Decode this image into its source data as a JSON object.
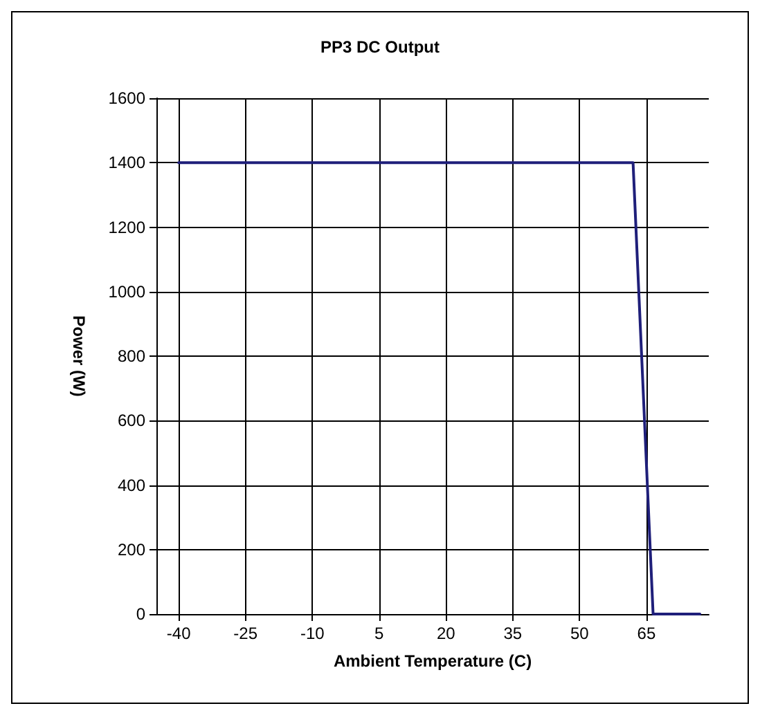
{
  "chart_data": {
    "type": "line",
    "title": "PP3 DC Output",
    "xlabel": "Ambient Temperature (C)",
    "ylabel": "Power (W)",
    "x": [
      -40,
      62,
      66.5,
      77
    ],
    "series": [
      {
        "color": "#1f1f7a",
        "values": [
          1400,
          1400,
          0,
          0
        ]
      }
    ],
    "xlim": [
      -45,
      79
    ],
    "xticks": [
      -40,
      -25,
      -10,
      5,
      20,
      35,
      50,
      65
    ],
    "ylim": [
      0,
      1600
    ],
    "yticks": [
      0,
      200,
      400,
      600,
      800,
      1000,
      1200,
      1400,
      1600
    ],
    "grid": true,
    "marker": "none",
    "line_style": "solid"
  }
}
